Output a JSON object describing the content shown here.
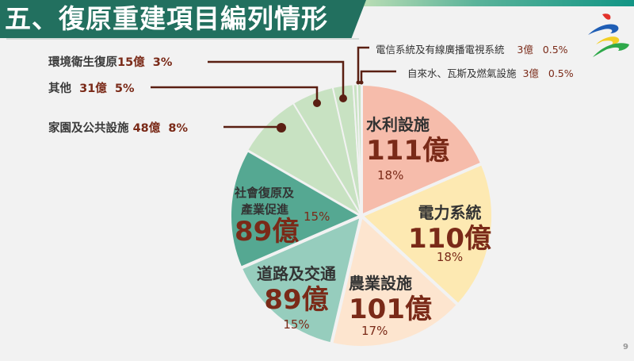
{
  "title": "五、復原重建項目編列情形",
  "page_number": "9",
  "logo": "swoosh-logo",
  "colors": {
    "title_bg": "#22705f",
    "amount_text": "#7a2a18",
    "leader_line": "#5a1f12"
  },
  "chart_data": {
    "type": "pie",
    "title": "五、復原重建項目編列情形",
    "unit": "億",
    "start_angle": "12 o'clock, clockwise",
    "categories": [
      "水利設施",
      "電力系統",
      "農業設施",
      "道路及交通",
      "社會復原及產業促進",
      "家園及公共設施",
      "其他",
      "環境衛生復原",
      "電信系統及有線廣播電視系統",
      "自來水、瓦斯及燃氣設施"
    ],
    "values": [
      111,
      110,
      101,
      89,
      89,
      48,
      31,
      15,
      3,
      3
    ],
    "percentages": [
      "18%",
      "18%",
      "17%",
      "15%",
      "15%",
      "8%",
      "5%",
      "3%",
      "0.5%",
      "0.5%"
    ],
    "slice_colors": [
      "#f6bcab",
      "#fde9b2",
      "#fde5cf",
      "#96cdbd",
      "#55a892",
      "#c8e2c2",
      "#c8e2c2",
      "#c8e2c2",
      "#c8e2c2",
      "#c8e2c2"
    ],
    "legend": "labels with leader lines"
  },
  "inner_labels": [
    {
      "cat": "水利設施",
      "amt": "111億",
      "pct": "18%"
    },
    {
      "cat": "電力系統",
      "amt": "110億",
      "pct": "18%"
    },
    {
      "cat": "農業設施",
      "amt": "101億",
      "pct": "17%"
    },
    {
      "cat": "道路及交通",
      "amt": "89億",
      "pct": "15%"
    },
    {
      "cat_line1": "社會復原及",
      "cat_line2": "產業促進",
      "amt": "89億",
      "pct": "15%"
    }
  ],
  "outer_labels": [
    {
      "cat": "電信系統及有線廣播電視系統",
      "amt": "3億",
      "pct": "0.5%"
    },
    {
      "cat": "自來水、瓦斯及燃氣設施",
      "amt": "3億",
      "pct": "0.5%"
    },
    {
      "cat": "環境衛生復原",
      "amt": "15億",
      "pct": "3%"
    },
    {
      "cat": "其他",
      "amt": "31億",
      "pct": "5%"
    },
    {
      "cat": "家園及公共設施",
      "amt": "48億",
      "pct": "8%"
    }
  ]
}
